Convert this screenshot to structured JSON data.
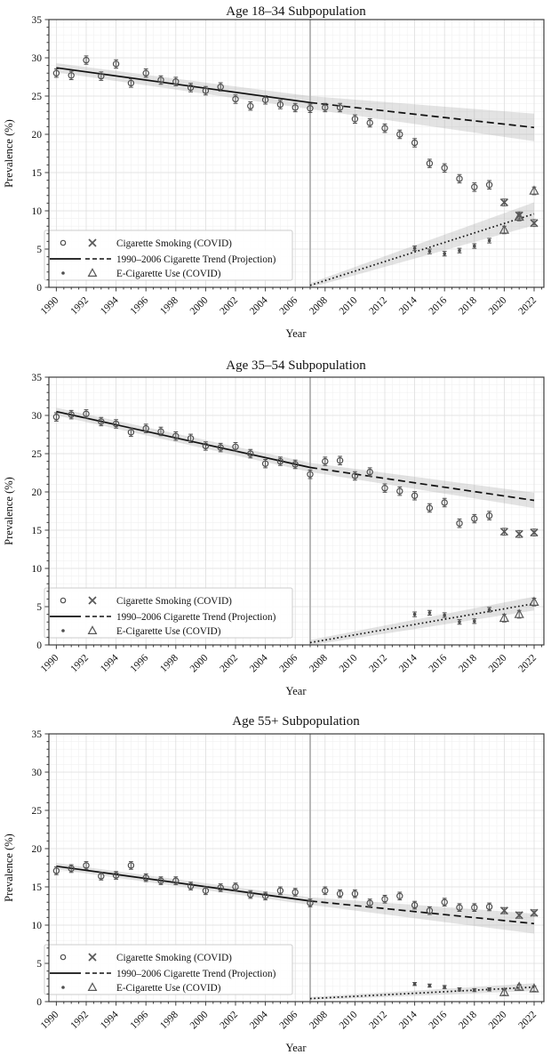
{
  "ylabel": "Prevalence (%)",
  "xlabel": "Year",
  "legend_items": [
    "Cigarette Smoking (COVID)",
    "1990–2006 Cigarette Trend (Projection)",
    "E-Cigarette Use (COVID)"
  ],
  "colors": {
    "trend": "#111111",
    "marker": "#4f4f4f",
    "covid_marker": "#585858",
    "band": "#9a9a9a",
    "vline": "#b0b0b0",
    "grid_major": "#dedede",
    "grid_minor": "#f1f1f1",
    "spine": "#3c3c3c",
    "text": "#111111",
    "legend_border": "#cccccc"
  },
  "chart_data": [
    {
      "type": "scatter",
      "title": "Age 18–34 Subpopulation",
      "xlabel": "Year",
      "ylabel": "Prevalence (%)",
      "ylim": [
        0,
        35
      ],
      "yticks": [
        0,
        5,
        10,
        15,
        20,
        25,
        30,
        35
      ],
      "xticks": [
        1990,
        1992,
        1994,
        1996,
        1998,
        2000,
        2002,
        2004,
        2006,
        2008,
        2010,
        2012,
        2014,
        2016,
        2018,
        2020,
        2022
      ],
      "vline_year": 2007,
      "series": [
        {
          "name": "Cigarette Smoking",
          "marker": "circle",
          "err": 0.55,
          "years": [
            1990,
            1991,
            1992,
            1993,
            1994,
            1995,
            1996,
            1997,
            1998,
            1999,
            2000,
            2001,
            2002,
            2003,
            2004,
            2005,
            2006,
            2007,
            2008,
            2009,
            2010,
            2011,
            2012,
            2013,
            2014,
            2015,
            2016,
            2017,
            2018,
            2019
          ],
          "values": [
            28.0,
            27.7,
            29.7,
            27.6,
            29.2,
            26.7,
            28.0,
            27.1,
            26.9,
            26.1,
            25.7,
            26.2,
            24.6,
            23.7,
            24.5,
            23.9,
            23.5,
            23.4,
            23.5,
            23.5,
            22.0,
            21.5,
            20.8,
            20.0,
            18.9,
            16.2,
            15.6,
            14.2,
            13.1,
            13.4
          ]
        },
        {
          "name": "Cigarette Smoking (COVID)",
          "marker": "x",
          "err": 0.45,
          "years": [
            2020,
            2021,
            2022
          ],
          "values": [
            11.1,
            9.4,
            8.4
          ]
        },
        {
          "name": "E-Cigarette Use",
          "marker": "dot",
          "err": 0.3,
          "years": [
            2014,
            2015,
            2016,
            2017,
            2018,
            2019
          ],
          "values": [
            5.1,
            4.7,
            4.4,
            4.8,
            5.4,
            6.1
          ]
        },
        {
          "name": "E-Cigarette Use (COVID)",
          "marker": "triangle",
          "err": 0.5,
          "years": [
            2020,
            2021,
            2022
          ],
          "values": [
            7.5,
            9.2,
            12.6
          ]
        }
      ],
      "cigarette_trend": {
        "solid": [
          [
            1990,
            28.7
          ],
          [
            2007,
            24.15
          ]
        ],
        "projection": [
          [
            2007,
            24.15
          ],
          [
            2022,
            20.9
          ]
        ],
        "band": {
          "x": [
            1990,
            2007,
            2022
          ],
          "y": [
            28.7,
            24.15,
            20.9
          ],
          "half_width": [
            0.6,
            0.85,
            1.8
          ]
        }
      },
      "ecig_trend": {
        "dotted": [
          [
            2007,
            0.25
          ],
          [
            2022,
            9.6
          ]
        ],
        "band": {
          "x": [
            2007,
            2022
          ],
          "y": [
            0.25,
            9.6
          ],
          "half_width": [
            0.3,
            1.5
          ]
        }
      }
    },
    {
      "type": "scatter",
      "title": "Age 35–54 Subpopulation",
      "xlabel": "Year",
      "ylabel": "Prevalence (%)",
      "ylim": [
        0,
        35
      ],
      "yticks": [
        0,
        5,
        10,
        15,
        20,
        25,
        30,
        35
      ],
      "xticks": [
        1990,
        1992,
        1994,
        1996,
        1998,
        2000,
        2002,
        2004,
        2006,
        2008,
        2010,
        2012,
        2014,
        2016,
        2018,
        2020,
        2022
      ],
      "vline_year": 2007,
      "series": [
        {
          "name": "Cigarette Smoking",
          "marker": "circle",
          "err": 0.55,
          "years": [
            1990,
            1991,
            1992,
            1993,
            1994,
            1995,
            1996,
            1997,
            1998,
            1999,
            2000,
            2001,
            2002,
            2003,
            2004,
            2005,
            2006,
            2007,
            2008,
            2009,
            2010,
            2011,
            2012,
            2013,
            2014,
            2015,
            2016,
            2017,
            2018,
            2019
          ],
          "values": [
            29.8,
            30.1,
            30.2,
            29.2,
            28.9,
            27.8,
            28.3,
            27.9,
            27.3,
            27.0,
            26.0,
            25.8,
            25.9,
            25.0,
            23.7,
            24.0,
            23.6,
            22.3,
            24.0,
            24.1,
            22.1,
            22.6,
            20.5,
            20.1,
            19.5,
            17.9,
            18.6,
            15.9,
            16.5,
            16.9
          ]
        },
        {
          "name": "Cigarette Smoking (COVID)",
          "marker": "x",
          "err": 0.45,
          "years": [
            2020,
            2021,
            2022
          ],
          "values": [
            14.8,
            14.5,
            14.7
          ]
        },
        {
          "name": "E-Cigarette Use",
          "marker": "dot",
          "err": 0.3,
          "years": [
            2014,
            2015,
            2016,
            2017,
            2018,
            2019
          ],
          "values": [
            4.0,
            4.2,
            3.9,
            3.0,
            3.1,
            4.6
          ]
        },
        {
          "name": "E-Cigarette Use (COVID)",
          "marker": "triangle",
          "err": 0.5,
          "years": [
            2020,
            2021,
            2022
          ],
          "values": [
            3.5,
            4.0,
            5.6
          ]
        }
      ],
      "cigarette_trend": {
        "solid": [
          [
            1990,
            30.5
          ],
          [
            2007,
            23.2
          ]
        ],
        "projection": [
          [
            2007,
            23.2
          ],
          [
            2022,
            18.9
          ]
        ],
        "band": {
          "x": [
            1990,
            2007,
            2022
          ],
          "y": [
            30.5,
            23.2,
            18.9
          ],
          "half_width": [
            0.5,
            0.6,
            1.0
          ]
        }
      },
      "ecig_trend": {
        "dotted": [
          [
            2007,
            0.3
          ],
          [
            2022,
            5.4
          ]
        ],
        "band": {
          "x": [
            2007,
            2022
          ],
          "y": [
            0.3,
            5.4
          ],
          "half_width": [
            0.35,
            0.9
          ]
        }
      }
    },
    {
      "type": "scatter",
      "title": "Age 55+ Subpopulation",
      "xlabel": "Year",
      "ylabel": "Prevalence (%)",
      "ylim": [
        0,
        35
      ],
      "yticks": [
        0,
        5,
        10,
        15,
        20,
        25,
        30,
        35
      ],
      "xticks": [
        1990,
        1992,
        1994,
        1996,
        1998,
        2000,
        2002,
        2004,
        2006,
        2008,
        2010,
        2012,
        2014,
        2016,
        2018,
        2020,
        2022
      ],
      "vline_year": 2007,
      "series": [
        {
          "name": "Cigarette Smoking",
          "marker": "circle",
          "err": 0.5,
          "years": [
            1990,
            1991,
            1992,
            1993,
            1994,
            1995,
            1996,
            1997,
            1998,
            1999,
            2000,
            2001,
            2002,
            2003,
            2004,
            2005,
            2006,
            2007,
            2008,
            2009,
            2010,
            2011,
            2012,
            2013,
            2014,
            2015,
            2016,
            2017,
            2018,
            2019
          ],
          "values": [
            17.1,
            17.4,
            17.8,
            16.4,
            16.5,
            17.8,
            16.2,
            15.8,
            15.8,
            15.1,
            14.5,
            14.9,
            15.0,
            14.0,
            13.8,
            14.5,
            14.3,
            12.9,
            14.5,
            14.1,
            14.1,
            12.9,
            13.4,
            13.8,
            12.6,
            11.9,
            13.0,
            12.3,
            12.3,
            12.4
          ]
        },
        {
          "name": "Cigarette Smoking (COVID)",
          "marker": "x",
          "err": 0.4,
          "years": [
            2020,
            2021,
            2022
          ],
          "values": [
            11.9,
            11.3,
            11.6
          ]
        },
        {
          "name": "E-Cigarette Use",
          "marker": "dot",
          "err": 0.2,
          "years": [
            2014,
            2015,
            2016,
            2017,
            2018,
            2019
          ],
          "values": [
            2.3,
            2.1,
            1.9,
            1.6,
            1.5,
            1.6
          ]
        },
        {
          "name": "E-Cigarette Use (COVID)",
          "marker": "triangle",
          "err": 0.35,
          "years": [
            2020,
            2021,
            2022
          ],
          "values": [
            1.2,
            1.9,
            1.7
          ]
        }
      ],
      "cigarette_trend": {
        "solid": [
          [
            1990,
            17.7
          ],
          [
            2007,
            13.15
          ]
        ],
        "projection": [
          [
            2007,
            13.15
          ],
          [
            2022,
            10.2
          ]
        ],
        "band": {
          "x": [
            1990,
            2007,
            2022
          ],
          "y": [
            17.7,
            13.15,
            10.2
          ],
          "half_width": [
            0.4,
            0.5,
            1.3
          ]
        }
      },
      "ecig_trend": {
        "dotted": [
          [
            2007,
            0.4
          ],
          [
            2022,
            1.9
          ]
        ],
        "band": {
          "x": [
            2007,
            2022
          ],
          "y": [
            0.4,
            1.9
          ],
          "half_width": [
            0.2,
            0.5
          ]
        }
      }
    }
  ]
}
